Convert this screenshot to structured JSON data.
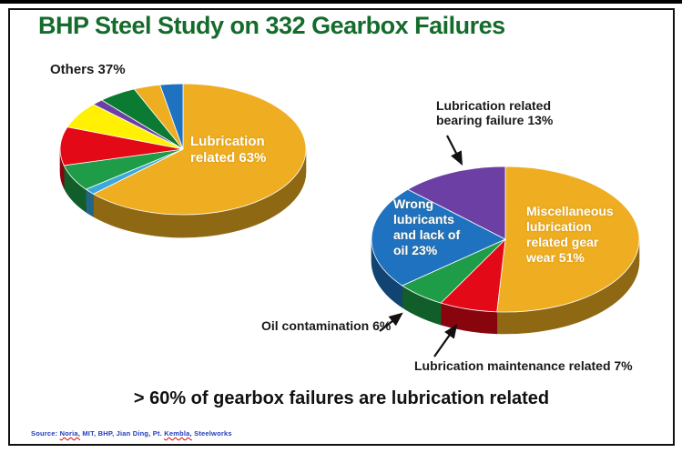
{
  "title": "BHP Steel Study on 332 Gearbox Failures",
  "headline": "> 60% of gearbox failures are lubrication related",
  "left_pie": {
    "others_label": "Others 37%",
    "main_label": "Lubrication\nrelated 63%"
  },
  "right_pie": {
    "bearing_label": "Lubrication related\nbearing failure 13%",
    "wrong_label": "Wrong\nlubricants\nand lack of\noil 23%",
    "misc_label": "Miscellaneous\nlubrication\nrelated gear\nwear 51%",
    "oil_label": "Oil contamination 6%",
    "maintenance_label": "Lubrication maintenance related 7%"
  },
  "source": {
    "s1": "Source: ",
    "s2": "Noria,",
    "s3": " MIT,  BHP, Jian Ding, Pt. ",
    "s4": "Kembla,",
    "s5": " Steelworks"
  },
  "colors": {
    "title_green": "#156b2c",
    "gold": "#EFAD21",
    "red": "#E30917",
    "green": "#1E9C47",
    "dark_green": "#0B7B33",
    "blue": "#1E72C0",
    "cyan": "#3BA8DC",
    "yellow": "#FFF101",
    "purple": "#6B3FA4",
    "source_blue": "#1f3bbf"
  },
  "chart_data": [
    {
      "type": "pie",
      "style": "3d",
      "title": "BHP Steel Study on 332 Gearbox Failures — all failures",
      "units": "percent",
      "start_angle_deg": 0,
      "legend_position": "none",
      "outside_label": "Others 37%",
      "slices": [
        {
          "label": "Lubrication related",
          "value": 63,
          "color": "#EFAD21"
        },
        {
          "label": "other segment (cyan, unlabeled)",
          "value": 1.5,
          "color": "#3BA8DC"
        },
        {
          "label": "other segment (green, unlabeled)",
          "value": 6.5,
          "color": "#1E9C47"
        },
        {
          "label": "other segment (red, unlabeled)",
          "value": 9.5,
          "color": "#E30917"
        },
        {
          "label": "other segment (yellow, unlabeled)",
          "value": 6.5,
          "color": "#FFF101"
        },
        {
          "label": "other segment (purple, unlabeled)",
          "value": 1.5,
          "color": "#6B3FA4"
        },
        {
          "label": "other segment (dark green, unlabeled)",
          "value": 5,
          "color": "#0B7B33"
        },
        {
          "label": "other segment (gold, unlabeled)",
          "value": 3.5,
          "color": "#EFAD21"
        },
        {
          "label": "other segment (blue, unlabeled)",
          "value": 3,
          "color": "#1E72C0"
        }
      ]
    },
    {
      "type": "pie",
      "style": "3d",
      "title": "Breakdown of lubrication related failures",
      "units": "percent",
      "start_angle_deg": 0,
      "legend_position": "none",
      "slices": [
        {
          "label": "Miscellaneous lubrication related gear wear",
          "value": 51,
          "color": "#EFAD21"
        },
        {
          "label": "Lubrication maintenance related",
          "value": 7,
          "color": "#E30917"
        },
        {
          "label": "Oil contamination",
          "value": 6,
          "color": "#1E9C47"
        },
        {
          "label": "Wrong lubricants and lack of oil",
          "value": 23,
          "color": "#1E72C0"
        },
        {
          "label": "Lubrication related bearing failure",
          "value": 13,
          "color": "#6B3FA4"
        }
      ]
    }
  ]
}
